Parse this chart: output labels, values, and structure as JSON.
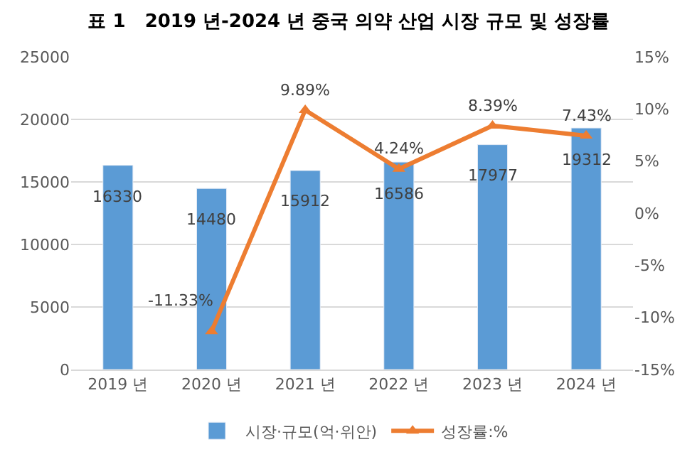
{
  "chart_data": {
    "type": "bar",
    "title": "표 1   2019 년-2024 년 중국 의약 산업 시장 규모 및 성장률",
    "categories": [
      "2019 년",
      "2020 년",
      "2021 년",
      "2022 년",
      "2023 년",
      "2024 년"
    ],
    "series": [
      {
        "name": "시장·규모(억·위안)",
        "color": "#5b9bd5",
        "values": [
          16330,
          14480,
          15912,
          16586,
          17977,
          19312
        ],
        "value_labels": [
          "16330",
          "14480",
          "15912",
          "16586",
          "17977",
          "19312"
        ]
      },
      {
        "name": "성장률:%",
        "type": "line",
        "axis": "y2",
        "color": "#ed7d31",
        "marker": "triangle",
        "values": [
          null,
          -11.33,
          9.89,
          4.24,
          8.39,
          7.43
        ],
        "value_labels": [
          null,
          "-11.33%",
          "9.89%",
          "4.24%",
          "8.39%",
          "7.43%"
        ]
      }
    ],
    "ylim": [
      0,
      25000
    ],
    "yticks": [
      0,
      5000,
      10000,
      15000,
      20000,
      25000
    ],
    "y2lim": [
      -15,
      15
    ],
    "y2ticks": [
      {
        "value": -15,
        "label": "-15%"
      },
      {
        "value": -10,
        "label": "-10%"
      },
      {
        "value": -5,
        "label": "-5%"
      },
      {
        "value": 0,
        "label": "0%"
      },
      {
        "value": 5,
        "label": "5%"
      },
      {
        "value": 10,
        "label": "10%"
      },
      {
        "value": 15,
        "label": "15%"
      }
    ],
    "grid": "y",
    "legend": "bottom"
  }
}
